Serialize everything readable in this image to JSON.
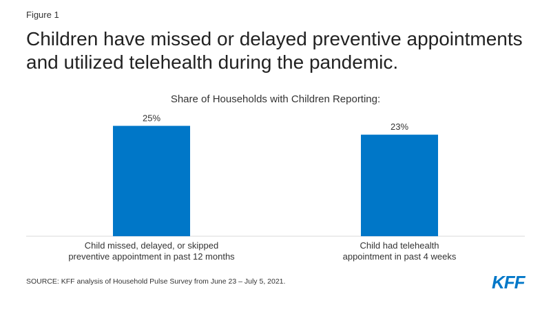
{
  "figure_label": "Figure 1",
  "title": "Children have missed or delayed preventive appointments and utilized telehealth during the pandemic.",
  "logo_text": "KFF",
  "source": "SOURCE: KFF analysis of Household Pulse Survey from June 23 – July 5, 2021.",
  "colors": {
    "bar": "#0077c8",
    "logo": "#0077c8",
    "axis": "#d9d9d9"
  },
  "chart_data": {
    "type": "bar",
    "title": "Share of Households with Children Reporting:",
    "categories": [
      [
        "Child missed, delayed, or skipped",
        "preventive appointment in past 12 months"
      ],
      [
        "Child had telehealth",
        "appointment in past 4 weeks"
      ]
    ],
    "values": [
      25,
      23
    ],
    "data_labels": [
      "25%",
      "23%"
    ],
    "ylim": [
      0,
      28
    ],
    "grid": false,
    "xlabel": "",
    "ylabel": ""
  }
}
